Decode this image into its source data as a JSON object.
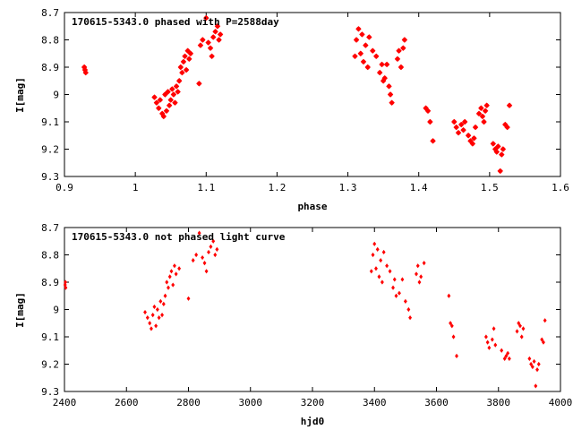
{
  "chart_data": [
    {
      "type": "scatter",
      "title": "170615-5343.0 phased with P=2588day",
      "xlabel": "phase",
      "ylabel": "I[mag]",
      "xlim": [
        0.9,
        1.6
      ],
      "ylim": [
        8.7,
        9.3
      ],
      "y_inverted": true,
      "x_ticks": [
        "0.9",
        "1",
        "1.1",
        "1.2",
        "1.3",
        "1.4",
        "1.5",
        "1.6"
      ],
      "y_ticks": [
        "8.7",
        "8.8",
        "8.9",
        "9",
        "9.1",
        "9.2",
        "9.3"
      ],
      "marker": "star",
      "color": "#ff0000",
      "points": [
        [
          0.929,
          8.91
        ],
        [
          0.93,
          8.92
        ],
        [
          0.928,
          8.9
        ],
        [
          1.027,
          9.01
        ],
        [
          1.03,
          9.03
        ],
        [
          1.033,
          9.05
        ],
        [
          1.035,
          9.02
        ],
        [
          1.038,
          9.07
        ],
        [
          1.04,
          9.08
        ],
        [
          1.042,
          9.0
        ],
        [
          1.044,
          9.06
        ],
        [
          1.046,
          8.99
        ],
        [
          1.048,
          9.04
        ],
        [
          1.05,
          9.02
        ],
        [
          1.052,
          8.98
        ],
        [
          1.054,
          9.0
        ],
        [
          1.056,
          9.03
        ],
        [
          1.058,
          8.97
        ],
        [
          1.06,
          8.99
        ],
        [
          1.062,
          8.95
        ],
        [
          1.064,
          8.9
        ],
        [
          1.066,
          8.92
        ],
        [
          1.068,
          8.88
        ],
        [
          1.07,
          8.86
        ],
        [
          1.072,
          8.91
        ],
        [
          1.074,
          8.84
        ],
        [
          1.076,
          8.87
        ],
        [
          1.078,
          8.85
        ],
        [
          1.09,
          8.96
        ],
        [
          1.092,
          8.82
        ],
        [
          1.095,
          8.8
        ],
        [
          1.1,
          8.72
        ],
        [
          1.103,
          8.81
        ],
        [
          1.106,
          8.83
        ],
        [
          1.108,
          8.86
        ],
        [
          1.11,
          8.79
        ],
        [
          1.113,
          8.77
        ],
        [
          1.116,
          8.75
        ],
        [
          1.118,
          8.8
        ],
        [
          1.12,
          8.78
        ],
        [
          1.31,
          8.86
        ],
        [
          1.312,
          8.8
        ],
        [
          1.315,
          8.76
        ],
        [
          1.318,
          8.85
        ],
        [
          1.32,
          8.78
        ],
        [
          1.322,
          8.88
        ],
        [
          1.325,
          8.82
        ],
        [
          1.328,
          8.9
        ],
        [
          1.33,
          8.79
        ],
        [
          1.335,
          8.84
        ],
        [
          1.34,
          8.86
        ],
        [
          1.345,
          8.92
        ],
        [
          1.348,
          8.89
        ],
        [
          1.35,
          8.95
        ],
        [
          1.352,
          8.94
        ],
        [
          1.355,
          8.89
        ],
        [
          1.358,
          8.97
        ],
        [
          1.36,
          9.0
        ],
        [
          1.362,
          9.03
        ],
        [
          1.37,
          8.87
        ],
        [
          1.372,
          8.84
        ],
        [
          1.375,
          8.9
        ],
        [
          1.378,
          8.83
        ],
        [
          1.38,
          8.8
        ],
        [
          1.41,
          9.05
        ],
        [
          1.413,
          9.06
        ],
        [
          1.416,
          9.1
        ],
        [
          1.42,
          9.17
        ],
        [
          1.45,
          9.1
        ],
        [
          1.453,
          9.12
        ],
        [
          1.456,
          9.14
        ],
        [
          1.46,
          9.11
        ],
        [
          1.463,
          9.13
        ],
        [
          1.465,
          9.1
        ],
        [
          1.47,
          9.15
        ],
        [
          1.473,
          9.17
        ],
        [
          1.476,
          9.18
        ],
        [
          1.478,
          9.16
        ],
        [
          1.48,
          9.12
        ],
        [
          1.485,
          9.07
        ],
        [
          1.488,
          9.05
        ],
        [
          1.49,
          9.08
        ],
        [
          1.492,
          9.1
        ],
        [
          1.494,
          9.06
        ],
        [
          1.496,
          9.04
        ],
        [
          1.505,
          9.18
        ],
        [
          1.508,
          9.2
        ],
        [
          1.51,
          9.21
        ],
        [
          1.512,
          9.19
        ],
        [
          1.515,
          9.28
        ],
        [
          1.517,
          9.22
        ],
        [
          1.519,
          9.2
        ],
        [
          1.522,
          9.11
        ],
        [
          1.525,
          9.12
        ],
        [
          1.528,
          9.04
        ]
      ]
    },
    {
      "type": "scatter",
      "title": "170615-5343.0 not phased light curve",
      "xlabel": "hjd0",
      "ylabel": "I[mag]",
      "xlim": [
        2400,
        4000
      ],
      "ylim": [
        8.7,
        9.3
      ],
      "y_inverted": true,
      "x_ticks": [
        "2400",
        "2600",
        "2800",
        "3000",
        "3200",
        "3400",
        "3600",
        "3800",
        "4000"
      ],
      "y_ticks": [
        "8.7",
        "8.8",
        "8.9",
        "9",
        "9.1",
        "9.2",
        "9.3"
      ],
      "marker": "diamond",
      "color": "#ff0000",
      "points": [
        [
          2402,
          8.91
        ],
        [
          2404,
          8.92
        ],
        [
          2403,
          8.9
        ],
        [
          2660,
          9.01
        ],
        [
          2668,
          9.03
        ],
        [
          2675,
          9.05
        ],
        [
          2680,
          9.07
        ],
        [
          2685,
          9.02
        ],
        [
          2690,
          8.99
        ],
        [
          2695,
          9.06
        ],
        [
          2700,
          9.0
        ],
        [
          2705,
          9.03
        ],
        [
          2710,
          8.97
        ],
        [
          2715,
          9.02
        ],
        [
          2720,
          8.98
        ],
        [
          2725,
          8.95
        ],
        [
          2730,
          8.9
        ],
        [
          2735,
          8.92
        ],
        [
          2740,
          8.88
        ],
        [
          2745,
          8.86
        ],
        [
          2750,
          8.91
        ],
        [
          2755,
          8.84
        ],
        [
          2760,
          8.87
        ],
        [
          2770,
          8.85
        ],
        [
          2800,
          8.96
        ],
        [
          2815,
          8.82
        ],
        [
          2825,
          8.8
        ],
        [
          2835,
          8.72
        ],
        [
          2845,
          8.81
        ],
        [
          2852,
          8.83
        ],
        [
          2858,
          8.86
        ],
        [
          2865,
          8.79
        ],
        [
          2872,
          8.77
        ],
        [
          2880,
          8.75
        ],
        [
          2886,
          8.8
        ],
        [
          2892,
          8.78
        ],
        [
          3390,
          8.86
        ],
        [
          3395,
          8.8
        ],
        [
          3400,
          8.76
        ],
        [
          3405,
          8.85
        ],
        [
          3410,
          8.78
        ],
        [
          3415,
          8.88
        ],
        [
          3420,
          8.82
        ],
        [
          3425,
          8.9
        ],
        [
          3430,
          8.79
        ],
        [
          3440,
          8.84
        ],
        [
          3450,
          8.86
        ],
        [
          3460,
          8.92
        ],
        [
          3465,
          8.89
        ],
        [
          3470,
          8.95
        ],
        [
          3480,
          8.94
        ],
        [
          3490,
          8.89
        ],
        [
          3500,
          8.97
        ],
        [
          3510,
          9.0
        ],
        [
          3515,
          9.03
        ],
        [
          3535,
          8.87
        ],
        [
          3540,
          8.84
        ],
        [
          3545,
          8.9
        ],
        [
          3550,
          8.88
        ],
        [
          3560,
          8.83
        ],
        [
          3640,
          8.95
        ],
        [
          3645,
          9.05
        ],
        [
          3650,
          9.06
        ],
        [
          3655,
          9.1
        ],
        [
          3665,
          9.17
        ],
        [
          3760,
          9.1
        ],
        [
          3765,
          9.12
        ],
        [
          3770,
          9.14
        ],
        [
          3780,
          9.11
        ],
        [
          3785,
          9.07
        ],
        [
          3790,
          9.13
        ],
        [
          3810,
          9.15
        ],
        [
          3820,
          9.18
        ],
        [
          3825,
          9.17
        ],
        [
          3830,
          9.16
        ],
        [
          3835,
          9.18
        ],
        [
          3860,
          9.08
        ],
        [
          3865,
          9.05
        ],
        [
          3870,
          9.06
        ],
        [
          3875,
          9.1
        ],
        [
          3880,
          9.07
        ],
        [
          3900,
          9.18
        ],
        [
          3905,
          9.2
        ],
        [
          3910,
          9.21
        ],
        [
          3915,
          9.19
        ],
        [
          3920,
          9.28
        ],
        [
          3925,
          9.22
        ],
        [
          3930,
          9.2
        ],
        [
          3940,
          9.11
        ],
        [
          3945,
          9.12
        ],
        [
          3950,
          9.04
        ]
      ]
    }
  ]
}
